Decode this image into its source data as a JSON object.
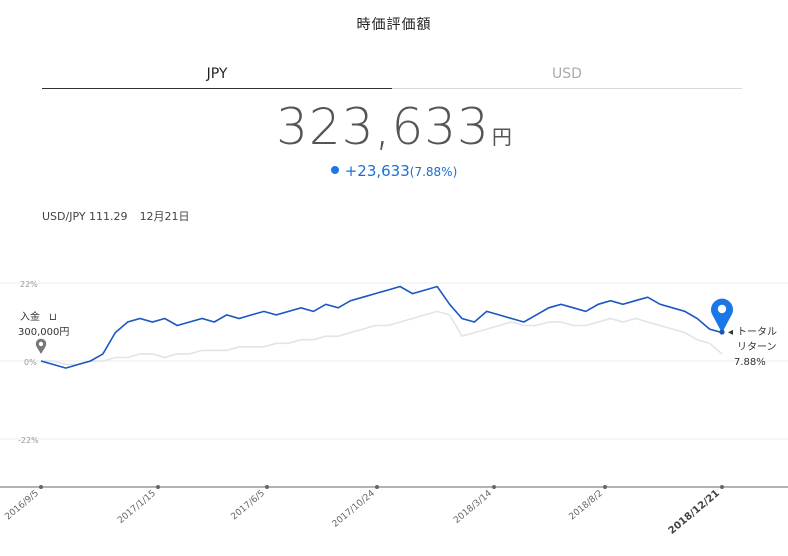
{
  "header": {
    "title": "時価評価額"
  },
  "tabs": [
    {
      "label": "JPY",
      "active": true
    },
    {
      "label": "USD",
      "active": false
    }
  ],
  "valuation": {
    "amount": "323,633",
    "unit": "円",
    "change": "+23,633",
    "change_pct": "(7.88%)"
  },
  "fx": {
    "rate": "USD/JPY 111.29",
    "date": "12月21日"
  },
  "deposit": {
    "label": "入金",
    "amount": "300,000円"
  },
  "total_return": {
    "line1": "トータル",
    "line2": "リターン",
    "value": "7.88%"
  },
  "colors": {
    "primary": "#1a56c4",
    "secondary": "#e2e4e8",
    "marker": "#1a78e6"
  },
  "chart_data": {
    "type": "line",
    "ylim": [
      -22,
      22
    ],
    "y_ticks": [
      "22%",
      "0%",
      "-22%"
    ],
    "x_ticks": [
      "2016/9/5",
      "2017/1/15",
      "2017/6/5",
      "2017/10/24",
      "2018/3/14",
      "2018/8/2",
      "2018/12/21"
    ],
    "series": [
      {
        "values": [
          0,
          -1,
          -2,
          -1,
          0,
          2,
          8,
          11,
          12,
          11,
          12,
          10,
          11,
          12,
          11,
          13,
          12,
          13,
          14,
          13,
          14,
          15,
          14,
          16,
          15,
          17,
          18,
          19,
          20,
          21,
          19,
          20,
          21,
          16,
          12,
          11,
          14,
          13,
          12,
          11,
          13,
          15,
          16,
          15,
          14,
          16,
          17,
          16,
          17,
          18,
          16,
          15,
          14,
          12,
          9,
          8
        ]
      },
      {
        "values": [
          0,
          0,
          -1,
          -1,
          0,
          0,
          1,
          1,
          2,
          2,
          1,
          2,
          2,
          3,
          3,
          3,
          4,
          4,
          4,
          5,
          5,
          6,
          6,
          7,
          7,
          8,
          9,
          10,
          10,
          11,
          12,
          13,
          14,
          13,
          7,
          8,
          9,
          10,
          11,
          10,
          10,
          11,
          11,
          10,
          10,
          11,
          12,
          11,
          12,
          11,
          10,
          9,
          8,
          6,
          5,
          2
        ]
      }
    ]
  }
}
